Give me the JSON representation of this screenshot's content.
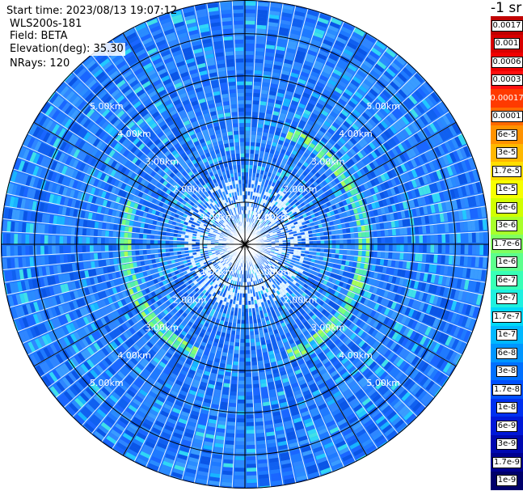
{
  "header": {
    "start_time": "Start time: 2023/08/13 19:07:12",
    "instrument": "WLS200s-181",
    "field": "Field: BETA",
    "elevation": "Elevation(deg): 35.30",
    "nrays": "NRays: 120"
  },
  "chart_data": {
    "type": "heatmap",
    "projection": "polar-ppi",
    "field": "BETA",
    "nrays": 120,
    "elevation_deg": 35.3,
    "range_max_km": 5.8,
    "range_rings_km": [
      1,
      2,
      3,
      4,
      5
    ],
    "ring_labels": [
      "1.00km",
      "2.00km",
      "3.00km",
      "4.00km",
      "5.00km"
    ],
    "spoke_angles_deg": [
      0,
      30,
      60,
      90,
      120,
      150,
      180,
      210,
      240,
      270,
      300,
      330
    ],
    "aerosol_ring": {
      "range_km_min": 2.7,
      "range_km_max": 3.0,
      "azimuth_deg_segments": [
        [
          20,
          160
        ],
        [
          205,
          290
        ]
      ]
    },
    "colorbar": {
      "title": "-1 sr",
      "labels": [
        "0.0017",
        "0.001",
        "0.0006",
        "0.0003",
        "0.00017",
        "0.0001",
        "6e-5",
        "3e-5",
        "1.7e-5",
        "1e-5",
        "6e-6",
        "3e-6",
        "1.7e-6",
        "1e-6",
        "6e-7",
        "3e-7",
        "1.7e-7",
        "1e-7",
        "6e-8",
        "3e-8",
        "1.7e-8",
        "1e-8",
        "6e-9",
        "3e-9",
        "1.7e-9",
        "1e-9"
      ],
      "colors": [
        "#c00000",
        "#d80000",
        "#f00000",
        "#ff1010",
        "#ff3a00",
        "#ff6a00",
        "#ff9200",
        "#ffb800",
        "#ffde00",
        "#f6ff00",
        "#d0ff00",
        "#a8ff2a",
        "#80ff60",
        "#5cff8c",
        "#38ffb6",
        "#1ef0e0",
        "#00d8f8",
        "#00b8ff",
        "#0096ff",
        "#0070ff",
        "#0050ff",
        "#0030f0",
        "#0018d8",
        "#0008b0",
        "#000090",
        "#00006a"
      ],
      "text_style": [
        "boxed",
        "boxed",
        "boxed",
        "boxed",
        "plain",
        "boxed",
        "boxed",
        "boxed",
        "boxed",
        "boxed",
        "boxed",
        "boxed",
        "boxed",
        "boxed",
        "boxed",
        "boxed",
        "boxed",
        "boxed",
        "boxed",
        "boxed",
        "boxed",
        "boxed",
        "boxed",
        "boxed",
        "boxed",
        "boxed"
      ]
    }
  }
}
